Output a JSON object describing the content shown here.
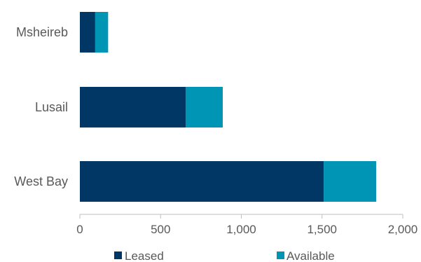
{
  "chart_data": {
    "type": "bar",
    "orientation": "horizontal",
    "stacked": true,
    "categories": [
      "Msheireb",
      "Lusail",
      "West Bay"
    ],
    "series": [
      {
        "name": "Leased",
        "values": [
          95,
          655,
          1510
        ],
        "color": "#003764"
      },
      {
        "name": "Available",
        "values": [
          80,
          230,
          325
        ],
        "color": "#0094b5"
      }
    ],
    "xlim": [
      0,
      2000
    ],
    "xticks": [
      0,
      500,
      1000,
      1500,
      2000
    ],
    "xtick_labels": [
      "0",
      "500",
      "1,000",
      "1,500",
      "2,000"
    ],
    "grid": false,
    "legend_position": "bottom",
    "axis_color": "#bfbfbf"
  }
}
